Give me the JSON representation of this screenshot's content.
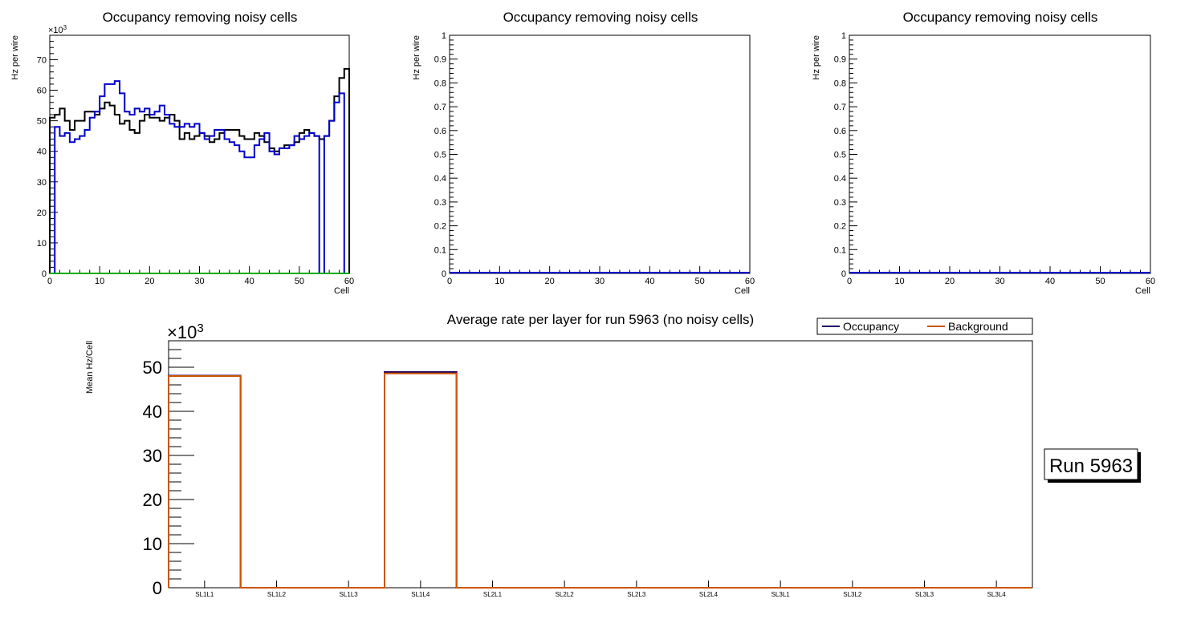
{
  "chart_data": [
    {
      "type": "histogram",
      "title": "Occupancy removing noisy cells",
      "xlabel": "Cell",
      "ylabel": "Hz per wire",
      "xlim": [
        0,
        60
      ],
      "ylim": [
        0,
        78
      ],
      "y_exponent_label": "×10",
      "y_exponent_power": "3",
      "xticks": [
        0,
        10,
        20,
        30,
        40,
        50,
        60
      ],
      "yticks": [
        0,
        10,
        20,
        30,
        40,
        50,
        60,
        70
      ],
      "series": [
        {
          "name": "black",
          "color": "#000000",
          "bins": [
            0,
            60
          ],
          "values": [
            51,
            52,
            54,
            50,
            47,
            50,
            50,
            53,
            53,
            52,
            54,
            56,
            55,
            52,
            49,
            50,
            47,
            46,
            50,
            52,
            51,
            51,
            50,
            51,
            52,
            50,
            44,
            46,
            44,
            45,
            46,
            45,
            43,
            44,
            46,
            47,
            47,
            47,
            45,
            44,
            44,
            46,
            45,
            43,
            41,
            40,
            41,
            42,
            42,
            43,
            46,
            47,
            46,
            45,
            44,
            45,
            50,
            58,
            64,
            67
          ]
        },
        {
          "name": "blue",
          "color": "#0000cc",
          "bins": [
            0,
            60
          ],
          "values": [
            0,
            48,
            45,
            46,
            43,
            44,
            45,
            47,
            51,
            53,
            58,
            62,
            62,
            63,
            59,
            53,
            52,
            54,
            53,
            54,
            52,
            53,
            55,
            52,
            49,
            48,
            48,
            49,
            48,
            49,
            46,
            44,
            45,
            47,
            47,
            44,
            43,
            42,
            40,
            38,
            38,
            42,
            44,
            46,
            40,
            39,
            41,
            41,
            42,
            45,
            44,
            45,
            46,
            45,
            0,
            45,
            50,
            56,
            59,
            0
          ]
        },
        {
          "name": "green",
          "color": "#00aa00",
          "bins": [
            0,
            60
          ],
          "values": [
            0,
            0,
            0,
            0,
            0,
            0,
            0,
            0,
            0,
            0,
            0,
            0,
            0,
            0,
            0,
            0,
            0,
            0,
            0,
            0,
            0,
            0,
            0,
            0,
            0,
            0,
            0,
            0,
            0,
            0,
            0,
            0,
            0,
            0,
            0,
            0,
            0,
            0,
            0,
            0,
            0,
            0,
            0,
            0,
            0,
            0,
            0,
            0,
            0,
            0,
            0,
            0,
            0,
            0,
            0,
            0,
            0,
            0,
            0,
            0
          ]
        }
      ]
    },
    {
      "type": "histogram",
      "title": "Occupancy removing noisy cells",
      "xlabel": "Cell",
      "ylabel": "Hz per wire",
      "xlim": [
        0,
        60
      ],
      "ylim": [
        0,
        1
      ],
      "xticks": [
        0,
        10,
        20,
        30,
        40,
        50,
        60
      ],
      "yticks": [
        "0",
        "0.1",
        "0.2",
        "0.3",
        "0.4",
        "0.5",
        "0.6",
        "0.7",
        "0.8",
        "0.9",
        "1"
      ],
      "series": [
        {
          "name": "blue",
          "color": "#0000cc",
          "bins": [
            0,
            60
          ],
          "values": []
        }
      ]
    },
    {
      "type": "histogram",
      "title": "Occupancy removing noisy cells",
      "xlabel": "Cell",
      "ylabel": "Hz per wire",
      "xlim": [
        0,
        60
      ],
      "ylim": [
        0,
        1
      ],
      "xticks": [
        0,
        10,
        20,
        30,
        40,
        50,
        60
      ],
      "yticks": [
        "0",
        "0.1",
        "0.2",
        "0.3",
        "0.4",
        "0.5",
        "0.6",
        "0.7",
        "0.8",
        "0.9",
        "1"
      ],
      "series": [
        {
          "name": "blue",
          "color": "#0000cc",
          "bins": [
            0,
            60
          ],
          "values": []
        }
      ]
    },
    {
      "type": "histogram",
      "title": "Average rate per layer for run 5963 (no noisy cells)",
      "xlabel": "",
      "ylabel": "Mean Hz/Cell",
      "ylim": [
        0,
        56
      ],
      "y_exponent_label": "×10",
      "y_exponent_power": "3",
      "categories": [
        "SL1L1",
        "SL1L2",
        "SL1L3",
        "SL1L4",
        "SL2L1",
        "SL2L2",
        "SL2L3",
        "SL2L4",
        "SL3L1",
        "SL3L2",
        "SL3L3",
        "SL3L4"
      ],
      "yticks": [
        0,
        10,
        20,
        30,
        40,
        50
      ],
      "legend_position": "top-right",
      "series": [
        {
          "name": "Occupancy",
          "color": "#1a0066",
          "values": [
            48.1,
            0,
            0,
            48.9,
            0,
            0,
            0,
            0,
            0,
            0,
            0,
            0
          ]
        },
        {
          "name": "Background",
          "color": "#cc5500",
          "values": [
            48.0,
            0,
            0,
            48.6,
            0,
            0,
            0,
            0,
            0,
            0,
            0,
            0
          ]
        }
      ],
      "run_label": "Run 5963"
    }
  ]
}
